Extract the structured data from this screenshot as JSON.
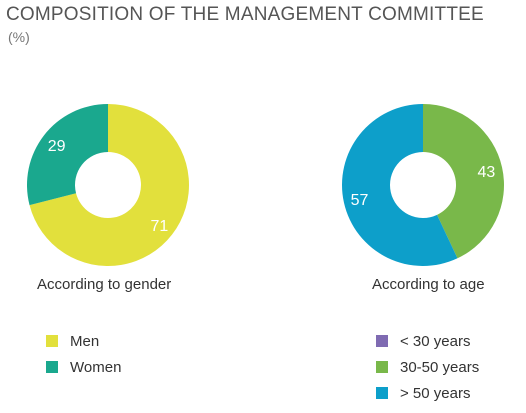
{
  "title": "COMPOSITION OF THE MANAGEMENT COMMITTEE",
  "subtitle": "(%)",
  "chart_data": [
    {
      "type": "pie",
      "donut": true,
      "caption": "According to gender",
      "categories": [
        "Men",
        "Women"
      ],
      "values": [
        71,
        29
      ],
      "colors": [
        "#e2e03c",
        "#1aa88e"
      ],
      "legend_placement": "below"
    },
    {
      "type": "pie",
      "donut": true,
      "caption": "According to age",
      "categories": [
        "< 30 years",
        "30-50 years",
        "> 50 years"
      ],
      "values": [
        0,
        43,
        57
      ],
      "colors": [
        "#7f6bb2",
        "#79b84a",
        "#0d9fca"
      ],
      "legend_placement": "below"
    }
  ]
}
